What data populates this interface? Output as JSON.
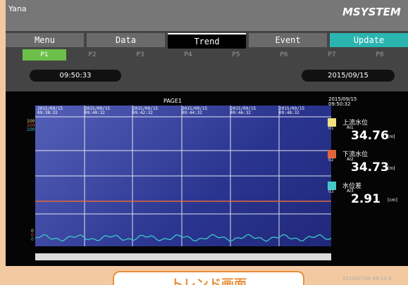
{
  "header": {
    "user": "Yana",
    "brand": "MSYSTEM"
  },
  "tabs": [
    "Menu",
    "Data",
    "Trend",
    "Event",
    "Update"
  ],
  "pages": [
    "P1",
    "P2",
    "P3",
    "P4",
    "P5",
    "P6",
    "P7",
    "P8"
  ],
  "status": {
    "time": "09:50:33",
    "date": "2015/09/15"
  },
  "trend": {
    "title": "PAGE1",
    "timestamps": [
      {
        "date": "2015/09/15",
        "time": "09:38:32"
      },
      {
        "date": "2015/09/15",
        "time": "09:40:32"
      },
      {
        "date": "2015/09/15",
        "time": "09:42:32"
      },
      {
        "date": "2015/09/15",
        "time": "09:44:32"
      },
      {
        "date": "2015/09/15",
        "time": "09:46:32"
      },
      {
        "date": "2015/09/15",
        "time": "09:48:32"
      }
    ],
    "scale_top": [
      "100",
      "100",
      "100"
    ],
    "scale_bottom": [
      "0",
      "0",
      "0"
    ]
  },
  "panel": {
    "timestamp": {
      "date": "2015/09/15",
      "time": "09:50:32"
    },
    "channels": [
      {
        "no": "01",
        "name": "上流水位",
        "tag": "AI1",
        "value": 34.76,
        "unit": "[m]"
      },
      {
        "no": "02",
        "name": "下流水位",
        "tag": "AI2",
        "value": 34.73,
        "unit": "[m]"
      },
      {
        "no": "03",
        "name": "水位差",
        "tag": "AI3",
        "value": 2.91,
        "unit": "[cm]"
      }
    ]
  },
  "caption": "トレンド画面",
  "footer_time": "2015/07/06 09:15:0"
}
